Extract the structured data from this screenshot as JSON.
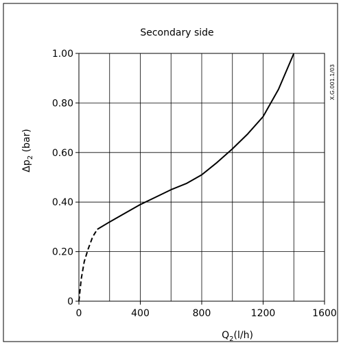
{
  "chart_data": {
    "type": "line",
    "title": "Secondary side",
    "ylabel": {
      "main": "Δp",
      "sub": "2",
      "unit": " (bar)"
    },
    "xlabel": {
      "main": "Q",
      "sub": "2",
      "unit": "(l/h)"
    },
    "figure_code": "X.G.001.1/03",
    "xlim": [
      0,
      1600
    ],
    "ylim": [
      0,
      1.0
    ],
    "x_ticks": [
      0,
      400,
      800,
      1200,
      1600
    ],
    "x_tick_labels": [
      "0",
      "400",
      "800",
      "1200",
      "1600"
    ],
    "y_ticks": [
      0,
      0.2,
      0.4,
      0.6,
      0.8,
      1.0
    ],
    "y_tick_labels": [
      "0",
      "0.20",
      "0.40",
      "0.60",
      "0.80",
      "1.00"
    ],
    "x_grid_step": 200,
    "grid": true,
    "series": [
      {
        "style": "dashed",
        "color": "#000000",
        "x": [
          0,
          15,
          35,
          60,
          90,
          120
        ],
        "y": [
          0,
          0.09,
          0.16,
          0.21,
          0.26,
          0.29
        ]
      },
      {
        "style": "solid",
        "color": "#000000",
        "x": [
          120,
          200,
          300,
          400,
          500,
          600,
          700,
          800,
          900,
          1000,
          1100,
          1200,
          1300,
          1400
        ],
        "y": [
          0.29,
          0.32,
          0.355,
          0.39,
          0.42,
          0.45,
          0.475,
          0.51,
          0.56,
          0.615,
          0.675,
          0.745,
          0.855,
          1.0
        ]
      }
    ]
  }
}
